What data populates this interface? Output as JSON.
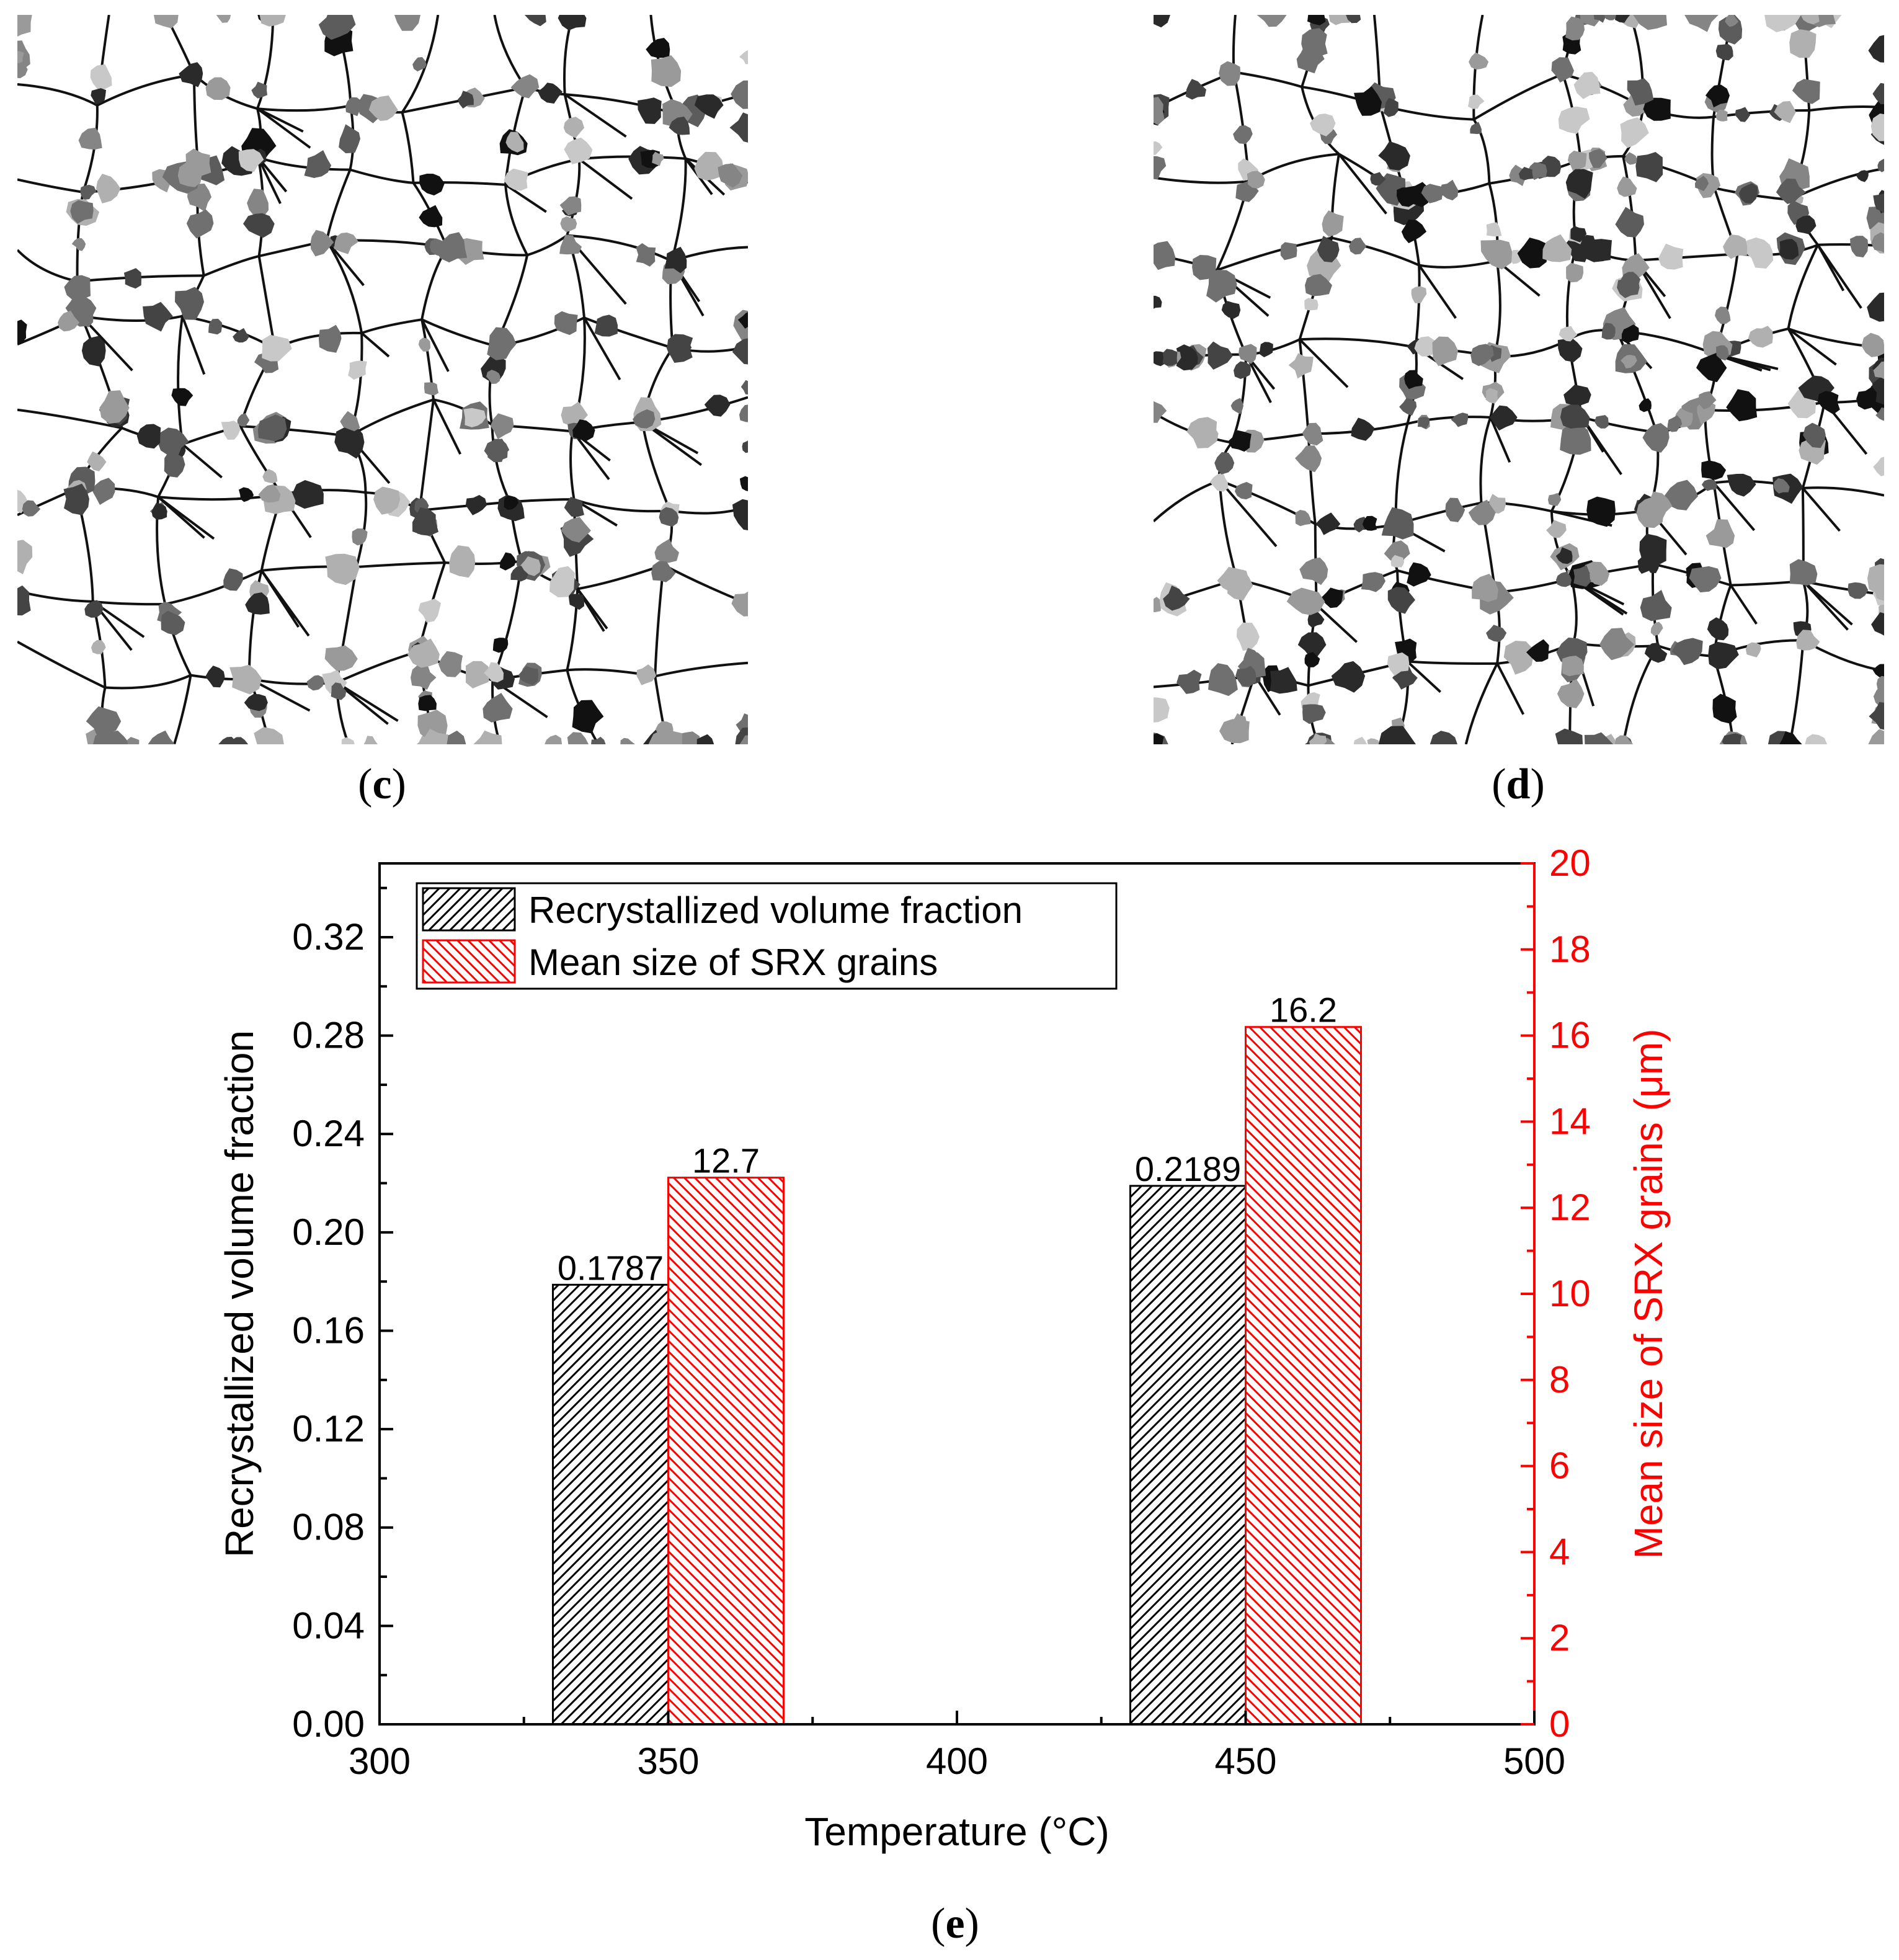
{
  "panels": {
    "c": {
      "label": "c",
      "open": "(",
      "close": ")"
    },
    "d": {
      "label": "d",
      "open": "(",
      "close": ")"
    },
    "e": {
      "label": "e",
      "open": "(",
      "close": ")"
    }
  },
  "chart_data": {
    "type": "bar",
    "xlabel": "Temperature (°C)",
    "ylabel_left": "Recrystallized volume fraction",
    "ylabel_right": "Mean size of SRX grains (μm)",
    "x_range": [
      300,
      500
    ],
    "x_ticks": [
      "300",
      "350",
      "400",
      "450",
      "500"
    ],
    "y_left_range": [
      0,
      0.35
    ],
    "y_left_ticks": [
      "0.00",
      "0.04",
      "0.08",
      "0.12",
      "0.16",
      "0.20",
      "0.24",
      "0.28",
      "0.32"
    ],
    "y_right_range": [
      0,
      20
    ],
    "y_right_ticks": [
      "0",
      "2",
      "4",
      "6",
      "8",
      "10",
      "12",
      "14",
      "16",
      "18",
      "20"
    ],
    "grid": false,
    "legend_position": "top-left",
    "categories": [
      350,
      450
    ],
    "series": [
      {
        "name": "Recrystallized volume fraction",
        "axis": "left",
        "color": "#000000",
        "values": [
          0.1787,
          0.2189
        ],
        "labels": [
          "0.1787",
          "0.2189"
        ]
      },
      {
        "name": "Mean size of SRX grains",
        "axis": "right",
        "color": "#ff0000",
        "values": [
          12.7,
          16.2
        ],
        "labels": [
          "12.7",
          "16.2"
        ]
      }
    ],
    "right_axis_color": "#ff0000"
  }
}
